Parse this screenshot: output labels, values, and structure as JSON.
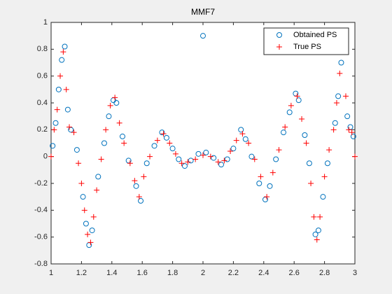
{
  "chart_data": {
    "type": "scatter",
    "title": "MMF7",
    "xlim": [
      1,
      3
    ],
    "xticks": [
      1,
      1.2,
      1.4,
      1.6,
      1.8,
      2,
      2.2,
      2.4,
      2.6,
      2.8,
      3
    ],
    "ylim": [
      -0.8,
      1
    ],
    "yticks": [
      -0.8,
      -0.6,
      -0.4,
      -0.2,
      0,
      0.2,
      0.4,
      0.6,
      0.8,
      1
    ],
    "grid": false,
    "legend": "northeast",
    "series": [
      {
        "name": "Obtained PS",
        "color": "#0072bd",
        "marker": "o",
        "x": [
          1.01,
          1.03,
          1.05,
          1.07,
          1.09,
          1.11,
          1.13,
          1.17,
          1.21,
          1.23,
          1.25,
          1.27,
          1.31,
          1.35,
          1.38,
          1.41,
          1.43,
          1.47,
          1.51,
          1.56,
          1.59,
          1.63,
          1.68,
          1.73,
          1.76,
          1.8,
          1.84,
          1.88,
          1.92,
          1.97,
          2,
          2.02,
          2.07,
          2.12,
          2.16,
          2.2,
          2.25,
          2.28,
          2.32,
          2.37,
          2.41,
          2.44,
          2.48,
          2.53,
          2.57,
          2.61,
          2.63,
          2.67,
          2.7,
          2.74,
          2.76,
          2.79,
          2.82,
          2.87,
          2.89,
          2.91,
          2.93,
          2.95,
          2.97,
          2.99
        ],
        "values": [
          0.08,
          0.25,
          0.5,
          0.72,
          0.82,
          0.35,
          0.2,
          0.05,
          -0.3,
          -0.5,
          -0.66,
          -0.55,
          -0.15,
          0.1,
          0.3,
          0.42,
          0.4,
          0.15,
          -0.03,
          -0.22,
          -0.33,
          -0.05,
          0.08,
          0.18,
          0.14,
          0.06,
          -0.02,
          -0.07,
          -0.03,
          0.02,
          0.9,
          0.03,
          -0.01,
          -0.06,
          -0.02,
          0.06,
          0.2,
          0.13,
          0.0,
          -0.2,
          -0.32,
          -0.22,
          -0.02,
          0.18,
          0.33,
          0.47,
          0.42,
          0.16,
          -0.05,
          -0.58,
          -0.55,
          -0.3,
          -0.05,
          0.25,
          0.45,
          0.7,
          0.82,
          0.3,
          0.22,
          0.15
        ]
      },
      {
        "name": "True PS",
        "color": "#ff0000",
        "marker": "+",
        "x": [
          1,
          1.02,
          1.04,
          1.06,
          1.08,
          1.1,
          1.12,
          1.15,
          1.18,
          1.2,
          1.22,
          1.24,
          1.26,
          1.28,
          1.3,
          1.33,
          1.36,
          1.39,
          1.42,
          1.45,
          1.48,
          1.52,
          1.55,
          1.58,
          1.61,
          1.65,
          1.7,
          1.74,
          1.78,
          1.82,
          1.86,
          1.9,
          1.95,
          2,
          2.05,
          2.1,
          2.14,
          2.18,
          2.22,
          2.26,
          2.3,
          2.34,
          2.38,
          2.42,
          2.46,
          2.5,
          2.54,
          2.58,
          2.62,
          2.65,
          2.68,
          2.71,
          2.73,
          2.75,
          2.77,
          2.8,
          2.83,
          2.86,
          2.88,
          2.9,
          2.92,
          2.94,
          2.96,
          2.98,
          3
        ],
        "values": [
          0,
          0.2,
          0.35,
          0.6,
          0.78,
          0.5,
          0.22,
          0.18,
          -0.05,
          -0.2,
          -0.4,
          -0.58,
          -0.64,
          -0.45,
          -0.25,
          -0.02,
          0.2,
          0.38,
          0.44,
          0.25,
          0.1,
          -0.05,
          -0.18,
          -0.3,
          -0.15,
          0,
          0.12,
          0.17,
          0.1,
          0.02,
          -0.05,
          -0.04,
          -0.02,
          0.01,
          0,
          -0.04,
          -0.03,
          0.04,
          0.12,
          0.17,
          0.1,
          -0.02,
          -0.15,
          -0.3,
          -0.12,
          0.05,
          0.22,
          0.38,
          0.45,
          0.28,
          0.1,
          -0.2,
          -0.45,
          -0.62,
          -0.45,
          -0.15,
          0.05,
          0.2,
          0.4,
          0.62,
          0.78,
          0.45,
          0.2,
          0.18,
          0
        ]
      }
    ]
  }
}
